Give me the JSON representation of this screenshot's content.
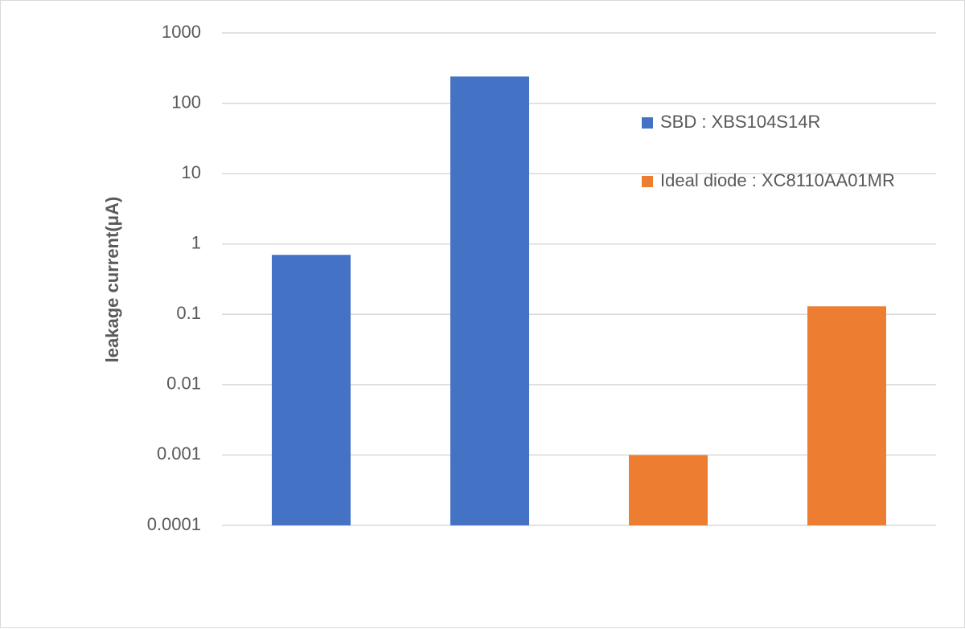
{
  "chart_data": {
    "type": "bar",
    "title": "",
    "xlabel": "",
    "ylabel": "leakage current(μA)",
    "y_scale": "log",
    "ylim": [
      0.0001,
      1000
    ],
    "y_ticks": [
      0.0001,
      0.001,
      0.01,
      0.1,
      1,
      10,
      100,
      1000
    ],
    "y_tick_labels": [
      "0.0001",
      "0.001",
      "0.01",
      "0.1",
      "1",
      "10",
      "100",
      "1000"
    ],
    "grid": true,
    "legend_position": "right",
    "bars": [
      {
        "series": "SBD : XBS104S14R",
        "value": 0.7
      },
      {
        "series": "SBD : XBS104S14R",
        "value": 240
      },
      {
        "series": "Ideal diode : XC8110AA01MR",
        "value": 0.001
      },
      {
        "series": "Ideal diode : XC8110AA01MR",
        "value": 0.13
      }
    ],
    "series": [
      {
        "name": "SBD : XBS104S14R",
        "color": "#4472c4"
      },
      {
        "name": "Ideal diode : XC8110AA01MR",
        "color": "#ed7d31"
      }
    ]
  }
}
